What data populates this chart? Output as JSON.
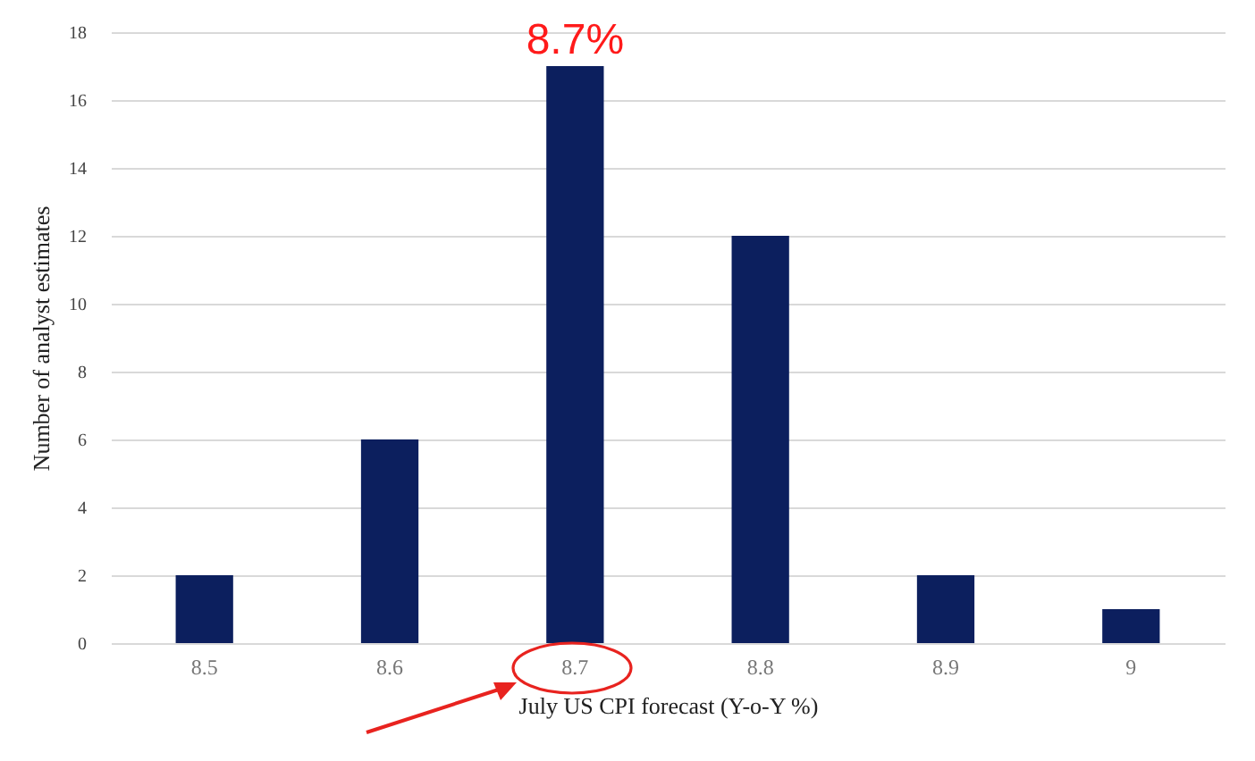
{
  "chart_data": {
    "type": "bar",
    "xlabel": "July US CPI forecast (Y-o-Y %)",
    "ylabel": "Number of analyst estimates",
    "categories": [
      "8.5",
      "8.6",
      "8.7",
      "8.8",
      "8.9",
      "9"
    ],
    "values": [
      2,
      6,
      17,
      12,
      2,
      1
    ],
    "color": "#0c1f5e",
    "ylim": [
      0,
      18
    ],
    "yticks": [
      0,
      2,
      4,
      6,
      8,
      10,
      12,
      14,
      16,
      18
    ],
    "grid": "y",
    "annotations": [
      {
        "text": "8.7%",
        "x": "8.7",
        "y": 17
      }
    ]
  }
}
